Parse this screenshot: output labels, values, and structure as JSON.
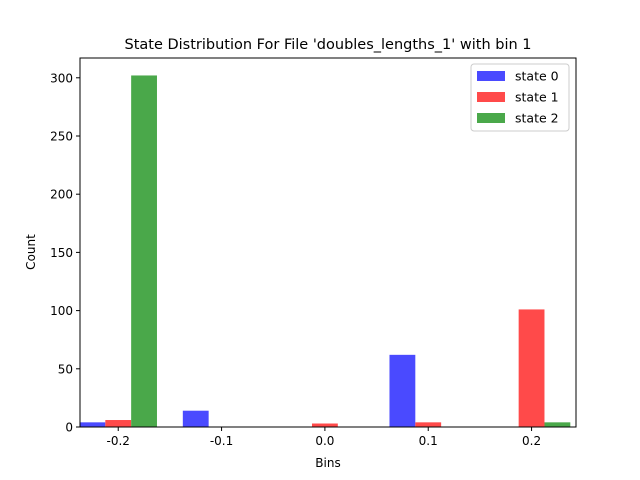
{
  "chart_data": {
    "type": "bar",
    "title": "State Distribution For File 'doubles_lengths_1' with bin 1",
    "xlabel": "Bins",
    "ylabel": "Count",
    "categories": [
      "-0.2",
      "-0.1",
      "0.0",
      "0.1",
      "0.2"
    ],
    "x": [
      -0.2,
      -0.1,
      0.0,
      0.1,
      0.2
    ],
    "series": [
      {
        "name": "state 0",
        "color": "#4a4aff",
        "values": [
          4,
          14,
          0,
          62,
          0
        ]
      },
      {
        "name": "state 1",
        "color": "#ff4a4a",
        "values": [
          6,
          0,
          3,
          4,
          101
        ]
      },
      {
        "name": "state 2",
        "color": "#4aa84a",
        "values": [
          302,
          0,
          0,
          0,
          4
        ]
      }
    ],
    "yticks": [
      0,
      50,
      100,
      150,
      200,
      250,
      300
    ],
    "ylim": [
      0,
      317
    ],
    "xlim": [
      -0.237,
      0.243
    ],
    "grid": false,
    "legend_position": "upper right"
  }
}
